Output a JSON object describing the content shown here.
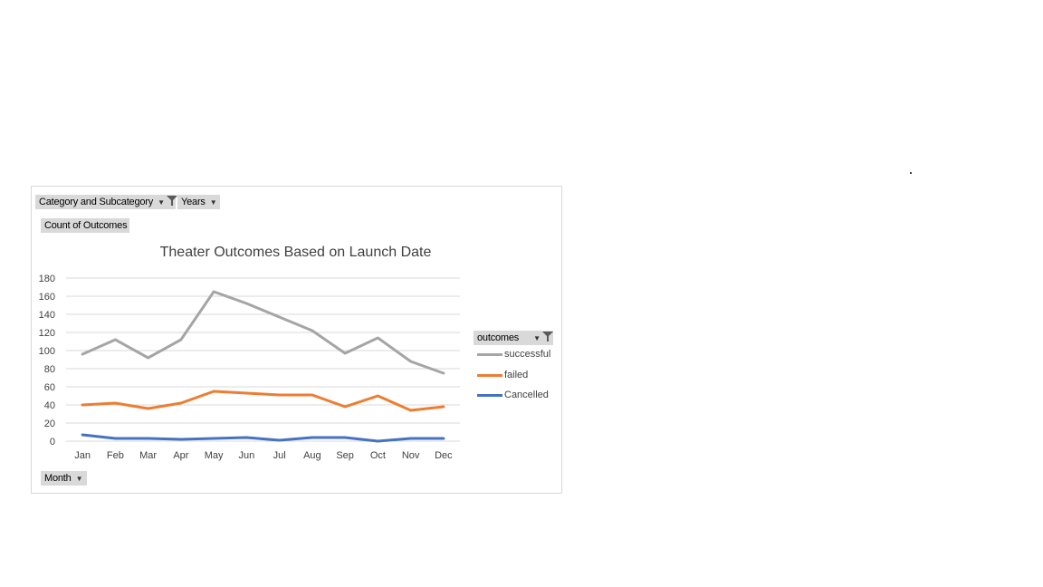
{
  "filters": {
    "category_label": "Category and Subcategory",
    "years_label": "Years",
    "value_label": "Count of Outcomes",
    "axis_field_label": "Month",
    "legend_field_label": "outcomes"
  },
  "colors": {
    "successful": "#a5a5a5",
    "failed": "#ed7d31",
    "cancelled": "#4472c4",
    "grid": "#d9d9d9",
    "pill": "#d9d9d9"
  },
  "chart_data": {
    "type": "line",
    "title": "Theater Outcomes Based on Launch Date",
    "xlabel": "",
    "ylabel": "",
    "categories": [
      "Jan",
      "Feb",
      "Mar",
      "Apr",
      "May",
      "Jun",
      "Jul",
      "Aug",
      "Sep",
      "Oct",
      "Nov",
      "Dec"
    ],
    "ylim": [
      0,
      180
    ],
    "yticks": [
      0,
      20,
      40,
      60,
      80,
      100,
      120,
      140,
      160,
      180
    ],
    "grid": true,
    "legend": "right",
    "series": [
      {
        "name": "successful",
        "color": "#a5a5a5",
        "values": [
          96,
          112,
          92,
          112,
          165,
          152,
          137,
          122,
          97,
          114,
          88,
          75
        ]
      },
      {
        "name": "failed",
        "color": "#ed7d31",
        "values": [
          40,
          42,
          36,
          42,
          55,
          53,
          51,
          51,
          38,
          50,
          34,
          38
        ]
      },
      {
        "name": "Cancelled",
        "color": "#4472c4",
        "values": [
          7,
          3,
          3,
          2,
          3,
          4,
          1,
          4,
          4,
          0,
          3,
          3
        ]
      }
    ]
  }
}
